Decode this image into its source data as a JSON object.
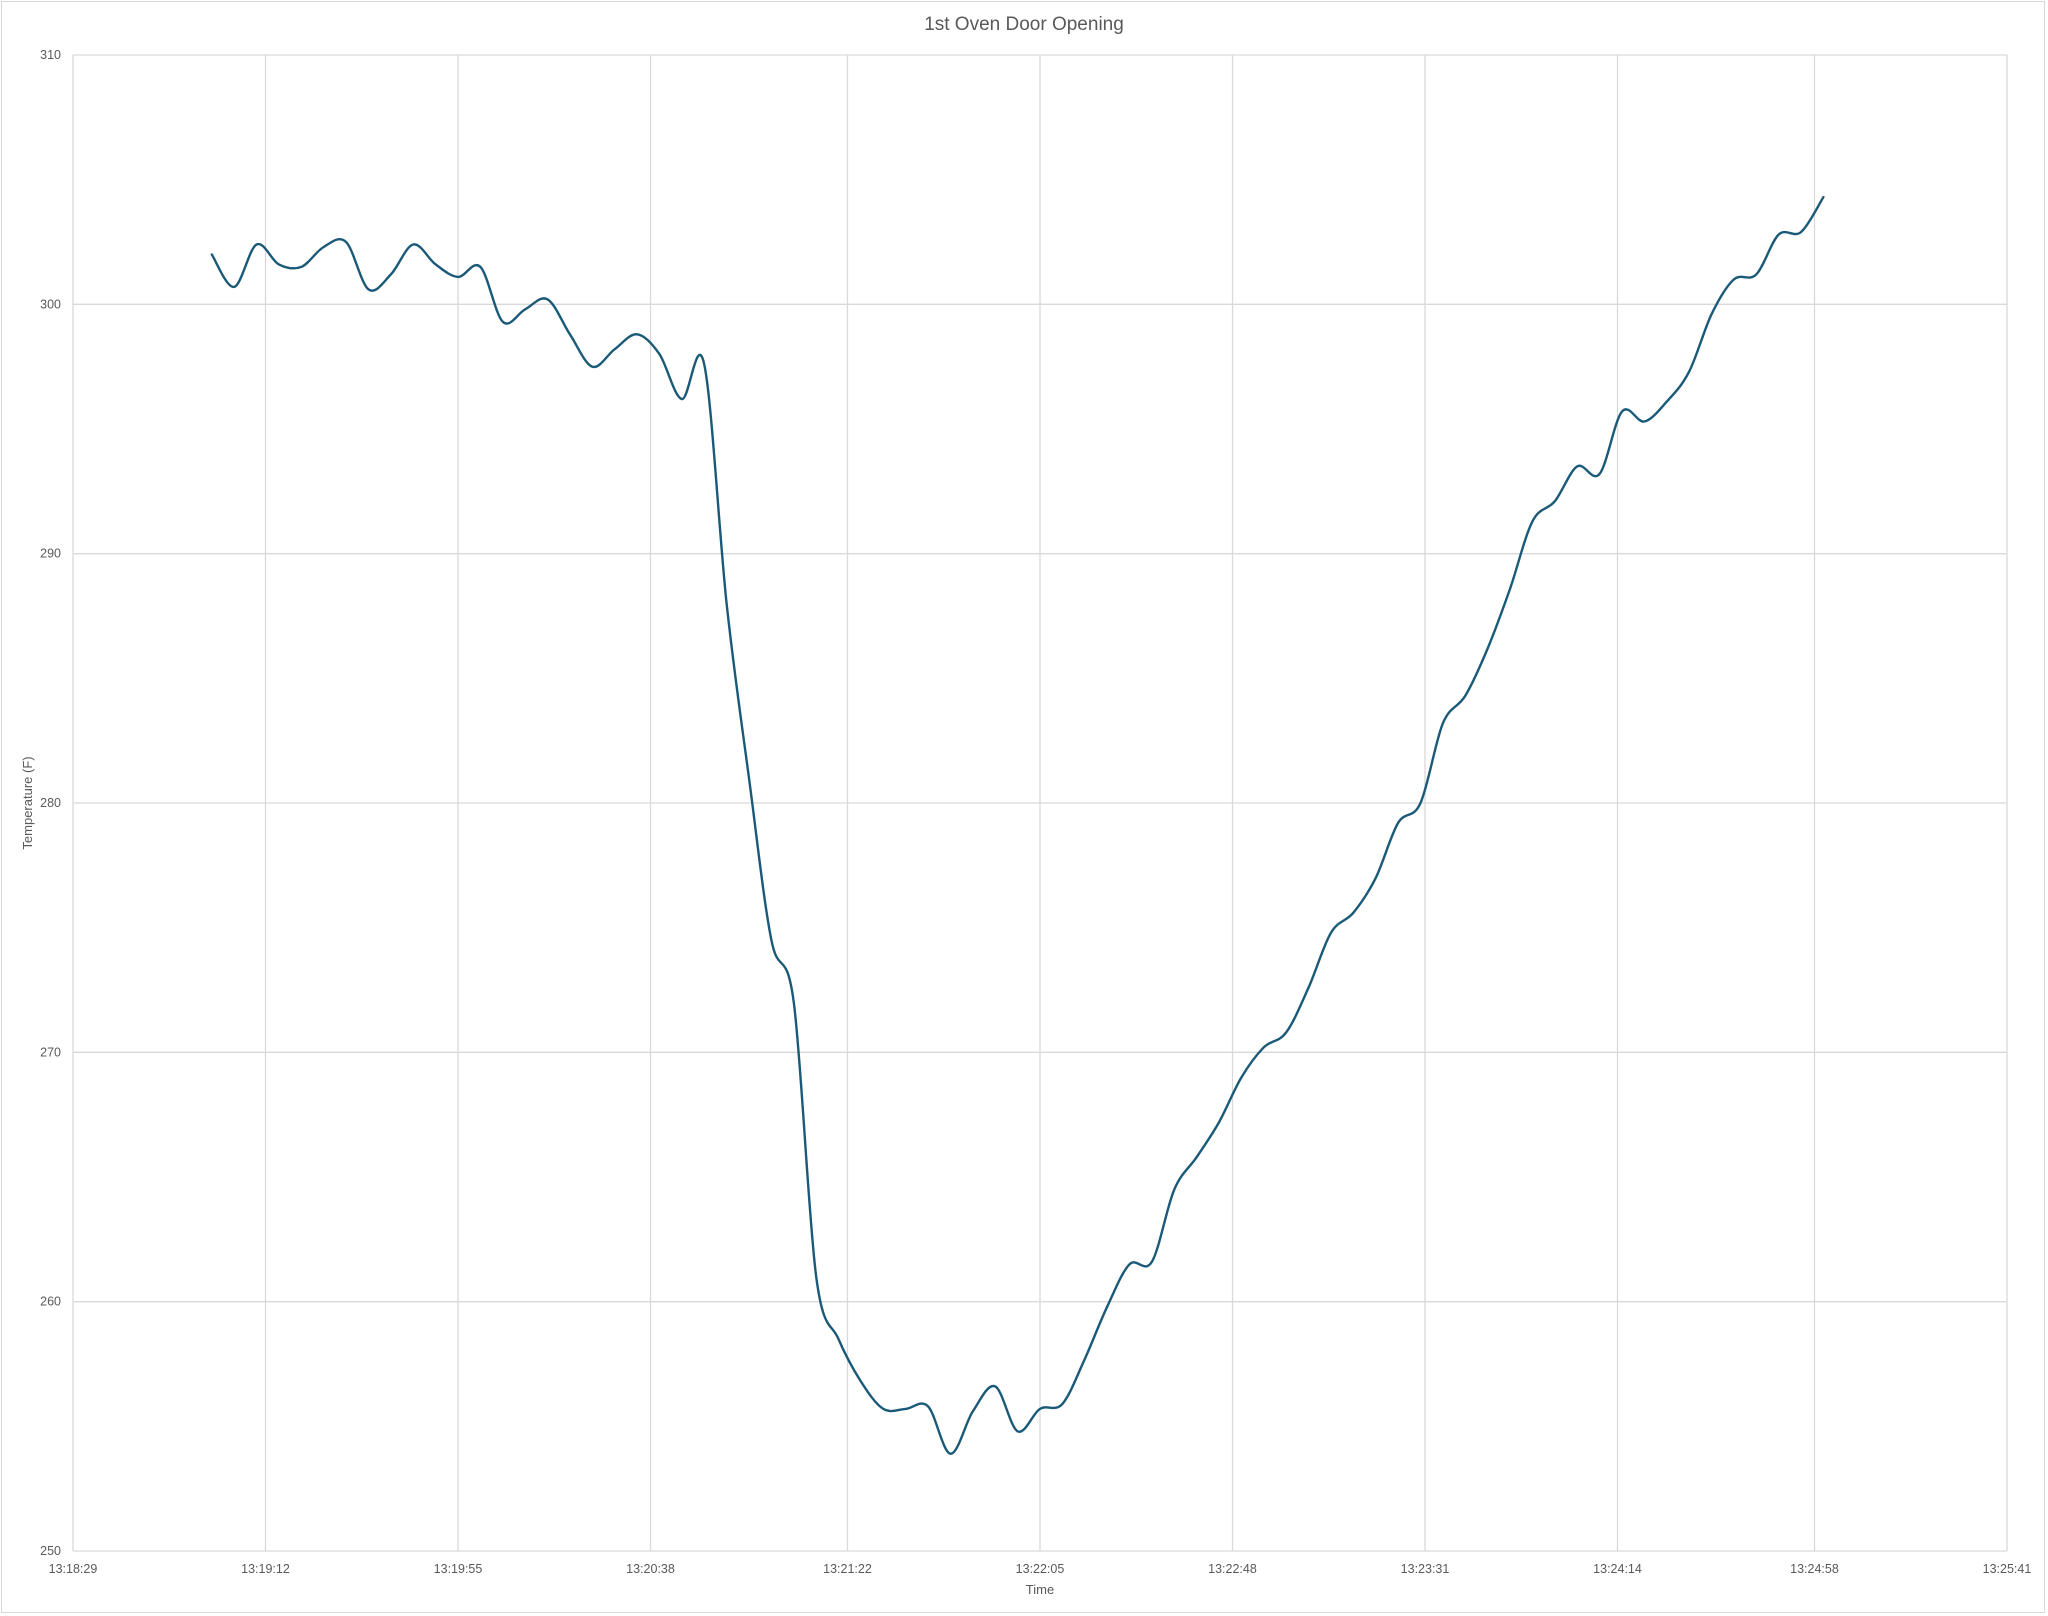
{
  "chart_data": {
    "type": "line",
    "title": "1st Oven Door Opening",
    "xlabel": "Time",
    "ylabel": "Temperature (F)",
    "x_ticks": [
      "13:18:29",
      "13:19:12",
      "13:19:55",
      "13:20:38",
      "13:21:22",
      "13:22:05",
      "13:22:48",
      "13:23:31",
      "13:24:14",
      "13:24:58",
      "13:25:41"
    ],
    "y_ticks": [
      "250",
      "260",
      "270",
      "280",
      "290",
      "300",
      "310"
    ],
    "xlim": [
      "13:18:29",
      "13:25:41"
    ],
    "ylim": [
      250,
      310
    ],
    "grid": true,
    "legend": "none",
    "line_color": "#1a5a78",
    "series": [
      {
        "x": [
          "13:19:00",
          "13:19:05",
          "13:19:10",
          "13:19:15",
          "13:19:20",
          "13:19:25",
          "13:19:30",
          "13:19:35",
          "13:19:40",
          "13:19:45",
          "13:19:50",
          "13:19:55",
          "13:20:00",
          "13:20:05",
          "13:20:10",
          "13:20:15",
          "13:20:20",
          "13:20:25",
          "13:20:30",
          "13:20:35",
          "13:20:40",
          "13:20:45",
          "13:20:50",
          "13:20:55",
          "13:21:00",
          "13:21:05",
          "13:21:10",
          "13:21:15",
          "13:21:20",
          "13:21:25",
          "13:21:30",
          "13:21:35",
          "13:21:40",
          "13:21:45",
          "13:21:50",
          "13:21:55",
          "13:22:00",
          "13:22:05",
          "13:22:10",
          "13:22:15",
          "13:22:20",
          "13:22:25",
          "13:22:30",
          "13:22:35",
          "13:22:40",
          "13:22:45",
          "13:22:50",
          "13:22:55",
          "13:23:00",
          "13:23:05",
          "13:23:10",
          "13:23:15",
          "13:23:20",
          "13:23:25",
          "13:23:30",
          "13:23:35",
          "13:23:40",
          "13:23:45",
          "13:23:50",
          "13:23:55",
          "13:24:00",
          "13:24:05",
          "13:24:10",
          "13:24:15",
          "13:24:20",
          "13:24:25",
          "13:24:30",
          "13:24:35",
          "13:24:40",
          "13:24:45",
          "13:24:50",
          "13:24:55",
          "13:25:00"
        ],
        "values": [
          302.0,
          300.7,
          302.4,
          301.6,
          301.5,
          302.3,
          302.5,
          300.6,
          301.2,
          302.4,
          301.6,
          301.1,
          301.5,
          299.3,
          299.8,
          300.2,
          298.8,
          297.5,
          298.2,
          298.8,
          298.0,
          296.2,
          297.6,
          288.0,
          281.0,
          274.5,
          272.0,
          261.0,
          258.5,
          256.8,
          255.7,
          255.7,
          255.8,
          253.9,
          255.6,
          256.6,
          254.8,
          255.7,
          255.9,
          257.7,
          259.8,
          261.5,
          261.6,
          264.5,
          265.8,
          267.2,
          269.0,
          270.2,
          270.8,
          272.6,
          274.8,
          275.6,
          277.0,
          279.2,
          280.0,
          283.2,
          284.3,
          286.2,
          288.6,
          291.3,
          292.1,
          293.5,
          293.2,
          295.7,
          295.3,
          296.1,
          297.3,
          299.6,
          301.0,
          301.2,
          302.8,
          302.9,
          304.3
        ]
      }
    ]
  }
}
